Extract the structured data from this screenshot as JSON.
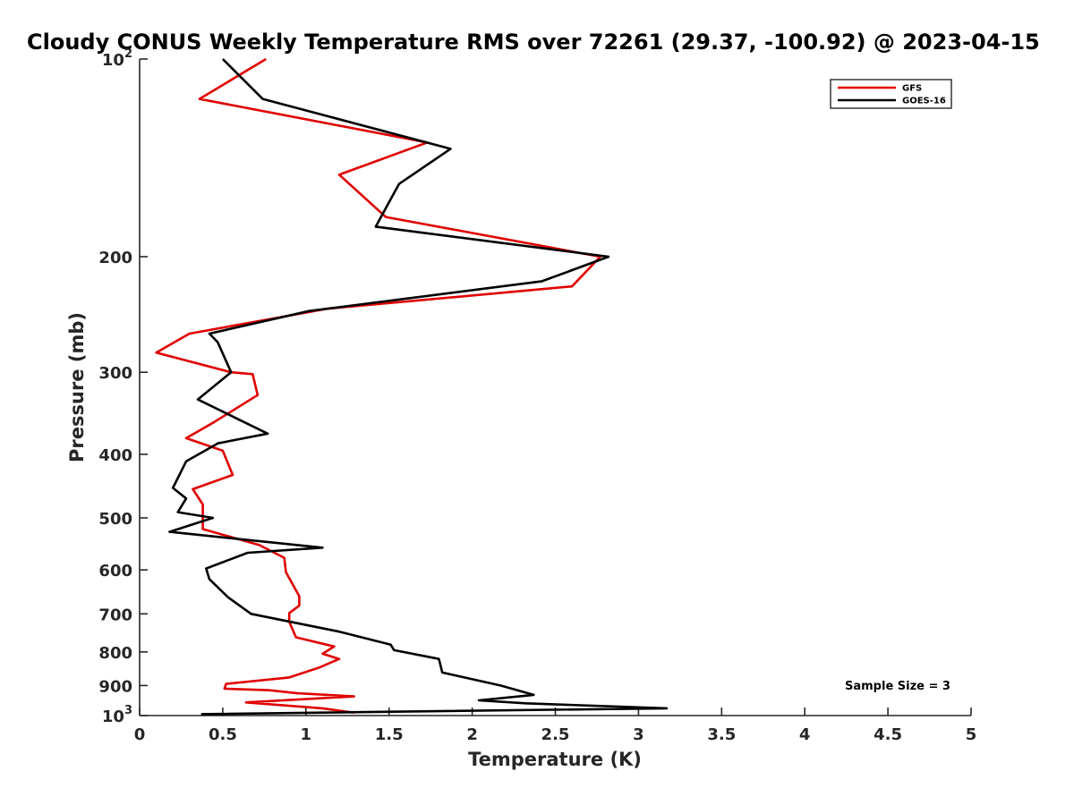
{
  "chart_data": {
    "type": "line",
    "title": "Cloudy CONUS Weekly Temperature RMS over 72261 (29.37, -100.92) @ 2023-04-15",
    "xlabel": "Temperature (K)",
    "ylabel": "Pressure (mb)",
    "xlim": [
      0,
      5
    ],
    "ylim": [
      100,
      1000
    ],
    "yscale": "log",
    "yreversed": true,
    "grid": false,
    "legend_position": "top-right",
    "x_ticks": [
      "0",
      "0.5",
      "1",
      "1.5",
      "2",
      "2.5",
      "3",
      "3.5",
      "4",
      "4.5",
      "5"
    ],
    "y_ticks": [
      {
        "value": 100,
        "label": "10",
        "sup": "2"
      },
      {
        "value": 200,
        "label": "200",
        "sup": ""
      },
      {
        "value": 300,
        "label": "300",
        "sup": ""
      },
      {
        "value": 400,
        "label": "400",
        "sup": ""
      },
      {
        "value": 500,
        "label": "500",
        "sup": ""
      },
      {
        "value": 600,
        "label": "600",
        "sup": ""
      },
      {
        "value": 700,
        "label": "700",
        "sup": ""
      },
      {
        "value": 800,
        "label": "800",
        "sup": ""
      },
      {
        "value": 900,
        "label": "900",
        "sup": ""
      },
      {
        "value": 1000,
        "label": "10",
        "sup": "3"
      }
    ],
    "annotation": "Sample Size = 3",
    "series": [
      {
        "name": "GFS",
        "color": "#e00000",
        "points": [
          [
            0.76,
            100
          ],
          [
            0.36,
            115
          ],
          [
            1.73,
            134
          ],
          [
            1.2,
            150
          ],
          [
            1.48,
            174
          ],
          [
            2.77,
            200
          ],
          [
            2.6,
            222
          ],
          [
            1.13,
            240
          ],
          [
            0.3,
            262
          ],
          [
            0.1,
            280
          ],
          [
            0.55,
            300
          ],
          [
            0.68,
            302
          ],
          [
            0.71,
            325
          ],
          [
            0.45,
            357
          ],
          [
            0.28,
            378
          ],
          [
            0.5,
            395
          ],
          [
            0.56,
            430
          ],
          [
            0.32,
            452
          ],
          [
            0.38,
            477
          ],
          [
            0.38,
            520
          ],
          [
            0.72,
            550
          ],
          [
            0.87,
            575
          ],
          [
            0.88,
            605
          ],
          [
            0.96,
            658
          ],
          [
            0.96,
            680
          ],
          [
            0.9,
            698
          ],
          [
            0.9,
            720
          ],
          [
            0.94,
            760
          ],
          [
            1.17,
            785
          ],
          [
            1.1,
            805
          ],
          [
            1.2,
            820
          ],
          [
            1.08,
            845
          ],
          [
            0.9,
            875
          ],
          [
            0.52,
            895
          ],
          [
            0.51,
            910
          ],
          [
            0.78,
            915
          ],
          [
            0.95,
            925
          ],
          [
            1.29,
            935
          ],
          [
            0.64,
            955
          ],
          [
            1.1,
            975
          ],
          [
            1.29,
            990
          ]
        ]
      },
      {
        "name": "GOES-16",
        "color": "#000000",
        "points": [
          [
            0.5,
            100
          ],
          [
            0.74,
            115
          ],
          [
            1.87,
            137
          ],
          [
            1.56,
            155
          ],
          [
            1.42,
            180
          ],
          [
            2.82,
            200
          ],
          [
            2.42,
            218
          ],
          [
            1.02,
            242
          ],
          [
            0.42,
            262
          ],
          [
            0.47,
            270
          ],
          [
            0.55,
            300
          ],
          [
            0.35,
            330
          ],
          [
            0.77,
            372
          ],
          [
            0.47,
            385
          ],
          [
            0.28,
            410
          ],
          [
            0.2,
            450
          ],
          [
            0.28,
            467
          ],
          [
            0.23,
            490
          ],
          [
            0.44,
            500
          ],
          [
            0.18,
            525
          ],
          [
            1.1,
            555
          ],
          [
            0.65,
            565
          ],
          [
            0.4,
            597
          ],
          [
            0.42,
            620
          ],
          [
            0.53,
            660
          ],
          [
            0.67,
            700
          ],
          [
            1.2,
            745
          ],
          [
            1.51,
            780
          ],
          [
            1.53,
            795
          ],
          [
            1.8,
            820
          ],
          [
            1.82,
            860
          ],
          [
            2.17,
            900
          ],
          [
            2.37,
            930
          ],
          [
            2.04,
            948
          ],
          [
            2.32,
            958
          ],
          [
            3.17,
            975
          ],
          [
            0.37,
            995
          ]
        ]
      }
    ]
  }
}
